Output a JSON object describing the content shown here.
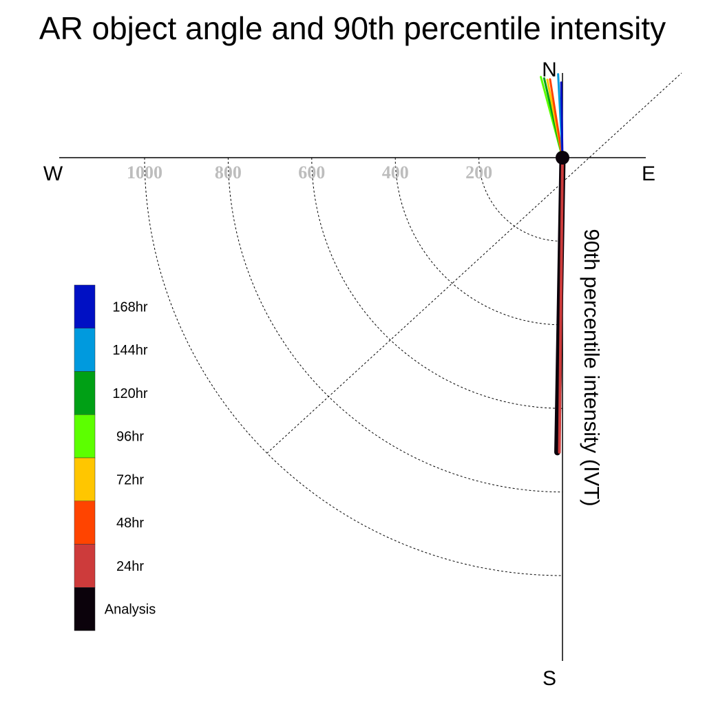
{
  "chart_data": {
    "type": "polar-vector",
    "title": "AR object angle and 90th percentile intensity",
    "radial_label": "90th percentile intensity (IVT)",
    "directions": {
      "north": "N",
      "south": "S",
      "east": "E",
      "west": "W"
    },
    "radial_ticks": [
      200,
      400,
      600,
      800,
      1000
    ],
    "radial_tick_labels": [
      "200",
      "400",
      "600",
      "800",
      "1000"
    ],
    "rlim": [
      0,
      1000
    ],
    "grid": "dashed quarter circles (SW quadrant) and dashed SW–NE diagonal",
    "legend_position": "left",
    "legend": [
      {
        "label": "168hr",
        "color": "#0010c4"
      },
      {
        "label": "144hr",
        "color": "#009ade"
      },
      {
        "label": "120hr",
        "color": "#00a015"
      },
      {
        "label": "96hr",
        "color": "#5cff00"
      },
      {
        "label": "72hr",
        "color": "#ffc600"
      },
      {
        "label": "48hr",
        "color": "#ff4400"
      },
      {
        "label": "24hr",
        "color": "#cd3b3b"
      },
      {
        "label": "Analysis",
        "color": "#0b020b"
      }
    ],
    "series": [
      {
        "name": "96hr",
        "angle_deg": 345,
        "intensity": 200,
        "color": "#5cff00"
      },
      {
        "name": "120hr",
        "angle_deg": 347,
        "intensity": 195,
        "color": "#00a015"
      },
      {
        "name": "72hr",
        "angle_deg": 349,
        "intensity": 190,
        "color": "#ffc600"
      },
      {
        "name": "48hr",
        "angle_deg": 351,
        "intensity": 190,
        "color": "#ff4400"
      },
      {
        "name": "144hr",
        "angle_deg": 357,
        "intensity": 200,
        "color": "#009ade"
      },
      {
        "name": "168hr",
        "angle_deg": 359,
        "intensity": 180,
        "color": "#0010c4"
      },
      {
        "name": "Analysis",
        "angle_deg": 181,
        "intensity": 705,
        "color": "#0b020b"
      },
      {
        "name": "24hr",
        "angle_deg": 180.6,
        "intensity": 705,
        "color": "#cd3b3b"
      }
    ]
  }
}
